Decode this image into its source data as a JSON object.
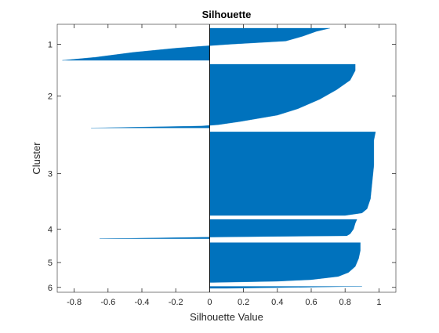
{
  "chart_data": {
    "type": "bar",
    "orientation": "horizontal",
    "title": "Silhouette",
    "xlabel": "Silhouette Value",
    "ylabel": "Cluster",
    "xlim": [
      -0.9,
      1.1
    ],
    "xticks": [
      -0.8,
      -0.6,
      -0.4,
      -0.2,
      0,
      0.2,
      0.4,
      0.6,
      0.8,
      1
    ],
    "xtick_labels": [
      "-0.8",
      "-0.6",
      "-0.4",
      "-0.2",
      "0",
      "0.2",
      "0.4",
      "0.6",
      "0.8",
      "1"
    ],
    "yticks": [
      "1",
      "2",
      "3",
      "4",
      "5",
      "6"
    ],
    "bar_color": "#0072BD",
    "grid": false,
    "sorted_descending_within_cluster": true,
    "clusters": [
      {
        "id": "1",
        "count": 50,
        "profile": [
          [
            0,
            0.71
          ],
          [
            0.1,
            0.63
          ],
          [
            0.25,
            0.55
          ],
          [
            0.4,
            0.45
          ],
          [
            0.5,
            0.12
          ],
          [
            0.55,
            -0.02
          ],
          [
            0.62,
            -0.2
          ],
          [
            0.75,
            -0.45
          ],
          [
            0.9,
            -0.67
          ],
          [
            1,
            -0.87
          ]
        ]
      },
      {
        "id": "2",
        "count": 99,
        "profile": [
          [
            0,
            0.86
          ],
          [
            0.1,
            0.86
          ],
          [
            0.25,
            0.83
          ],
          [
            0.4,
            0.75
          ],
          [
            0.55,
            0.65
          ],
          [
            0.7,
            0.52
          ],
          [
            0.8,
            0.4
          ],
          [
            0.9,
            0.18
          ],
          [
            0.95,
            0.05
          ],
          [
            0.97,
            -0.05
          ],
          [
            1,
            -0.7
          ]
        ]
      },
      {
        "id": "3",
        "count": 130,
        "profile": [
          [
            0,
            0.98
          ],
          [
            0.1,
            0.97
          ],
          [
            0.4,
            0.97
          ],
          [
            0.6,
            0.96
          ],
          [
            0.8,
            0.95
          ],
          [
            0.92,
            0.93
          ],
          [
            0.97,
            0.9
          ],
          [
            1,
            0.8
          ]
        ]
      },
      {
        "id": "4",
        "count": 30,
        "profile": [
          [
            0,
            0.87
          ],
          [
            0.2,
            0.86
          ],
          [
            0.5,
            0.85
          ],
          [
            0.75,
            0.83
          ],
          [
            0.85,
            0.81
          ],
          [
            0.88,
            0.4
          ],
          [
            0.92,
            0
          ],
          [
            0.96,
            -0.3
          ],
          [
            1,
            -0.65
          ]
        ]
      },
      {
        "id": "5",
        "count": 62,
        "profile": [
          [
            0,
            0.89
          ],
          [
            0.2,
            0.89
          ],
          [
            0.4,
            0.88
          ],
          [
            0.6,
            0.86
          ],
          [
            0.75,
            0.82
          ],
          [
            0.85,
            0.76
          ],
          [
            0.93,
            0.6
          ],
          [
            0.97,
            0.4
          ],
          [
            1,
            0.02
          ]
        ]
      },
      {
        "id": "6",
        "count": 3,
        "profile": [
          [
            0,
            0.9
          ],
          [
            0.5,
            0.5
          ],
          [
            1,
            0.1
          ]
        ]
      }
    ]
  }
}
